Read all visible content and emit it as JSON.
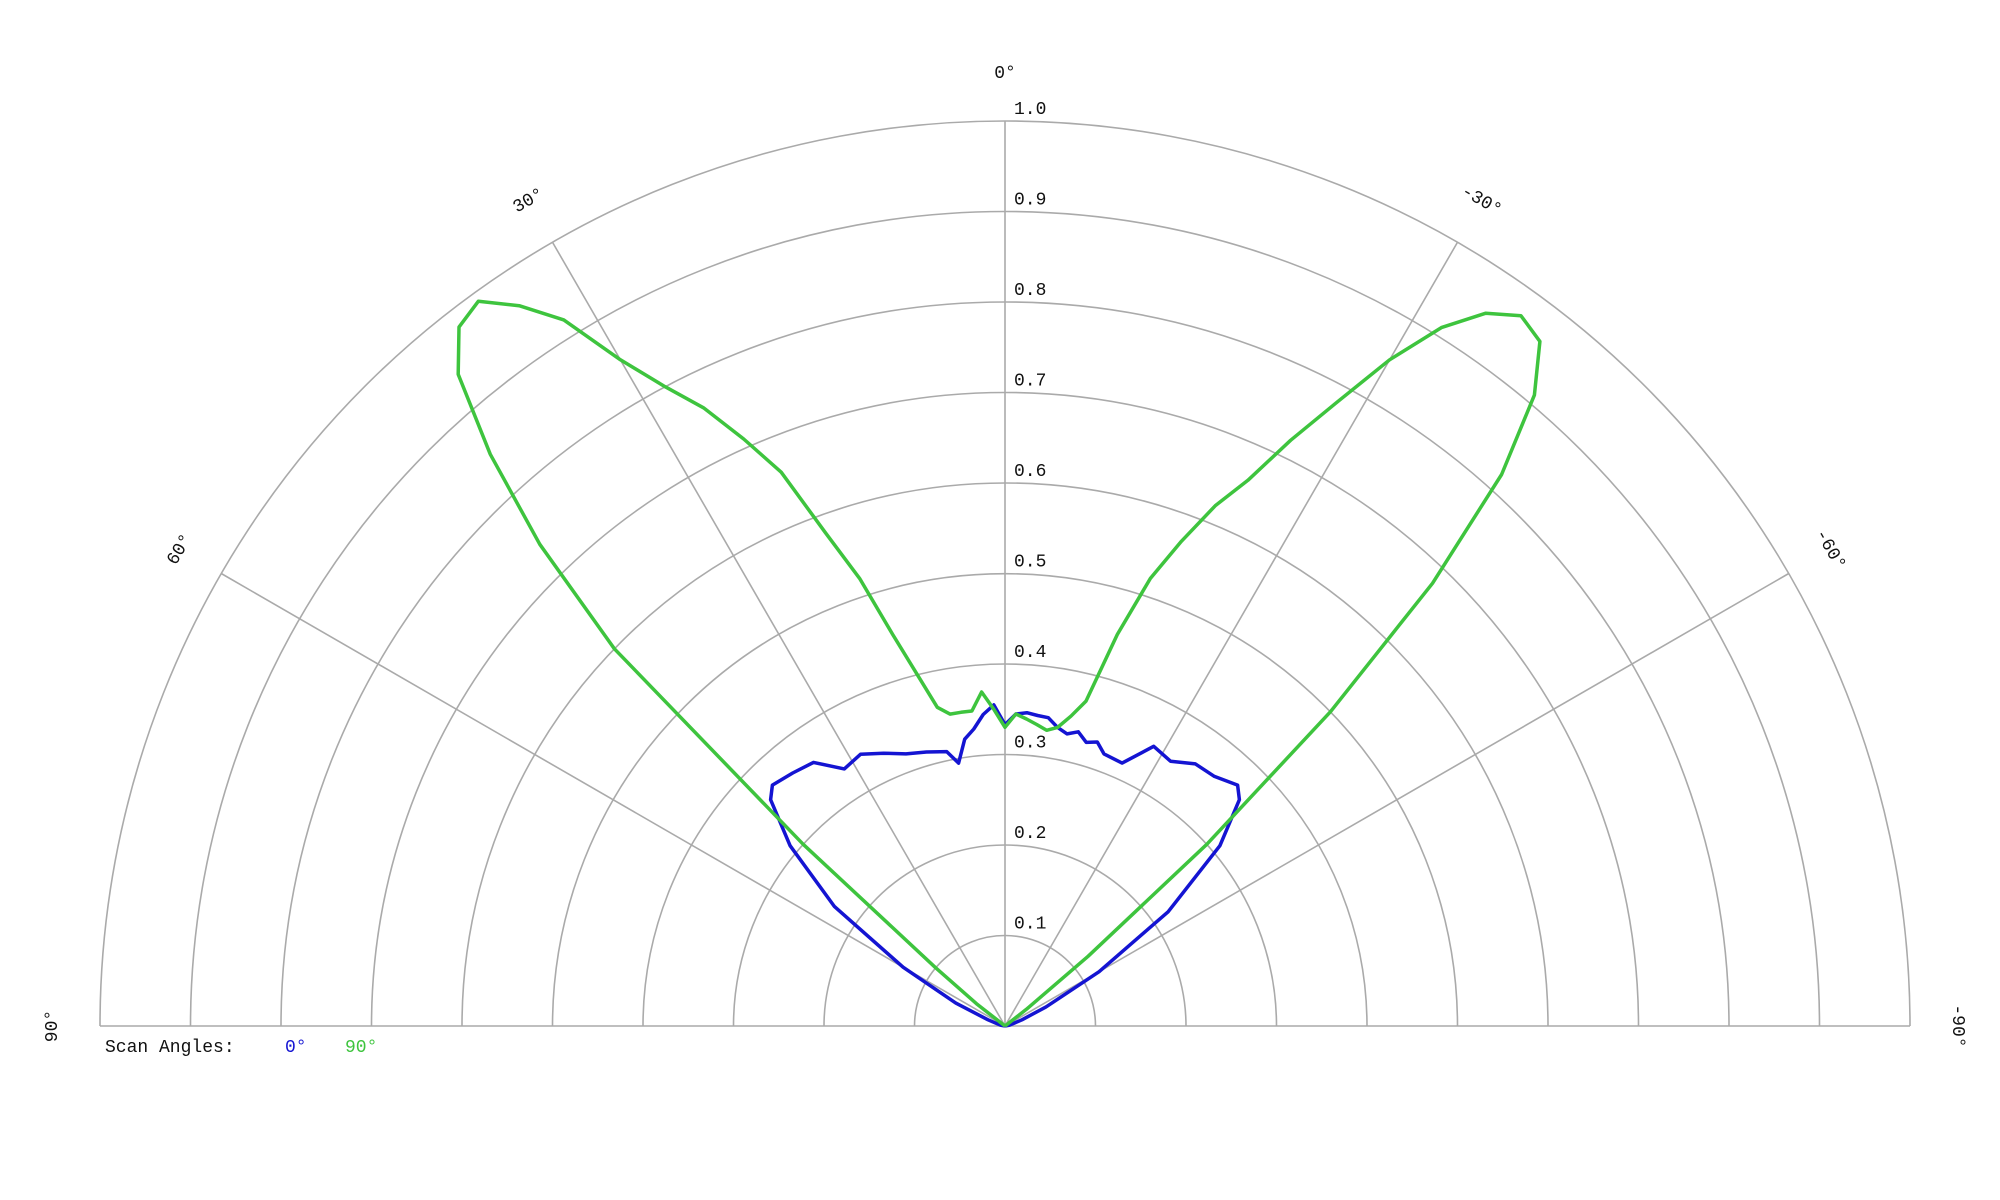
{
  "chart_data": {
    "type": "polar",
    "rlim": [
      0,
      1
    ],
    "rticks": [
      0.1,
      0.2,
      0.3,
      0.4,
      0.5,
      0.6,
      0.7,
      0.8,
      0.9,
      {
        "value": 1,
        "label": "1.0"
      }
    ],
    "thetalim": [
      90,
      -90
    ],
    "thetaticks": [
      {
        "value": 90,
        "label": "90°"
      },
      {
        "value": 60,
        "label": "60°"
      },
      {
        "value": 30,
        "label": "30°"
      },
      {
        "value": 0,
        "label": "0°"
      },
      {
        "value": -30,
        "label": "-30°"
      },
      {
        "value": -60,
        "label": "-60°"
      },
      {
        "value": -90,
        "label": "-90°"
      }
    ],
    "grid": true,
    "legend_title": "Scan Angles:",
    "legend": "bottom-left",
    "series": [
      {
        "name": "0°",
        "color": "#1414d2",
        "x": [
          90,
          80,
          70,
          65,
          60,
          55,
          50,
          46,
          44,
          40,
          36,
          32,
          28,
          24,
          20,
          16,
          12,
          10,
          8,
          6,
          4,
          2,
          0,
          -2,
          -4,
          -6,
          -8,
          -10,
          -12,
          -14,
          -16,
          -18,
          -20,
          -24,
          -28,
          -32,
          -36,
          -40,
          -44,
          -46,
          -50,
          -55,
          -60,
          -65,
          -70,
          -80,
          -90
        ],
        "values": [
          0,
          0.005,
          0.02,
          0.06,
          0.13,
          0.23,
          0.31,
          0.36,
          0.37,
          0.365,
          0.36,
          0.335,
          0.34,
          0.33,
          0.32,
          0.315,
          0.31,
          0.295,
          0.32,
          0.33,
          0.345,
          0.355,
          0.333,
          0.345,
          0.347,
          0.345,
          0.344,
          0.335,
          0.33,
          0.335,
          0.326,
          0.33,
          0.32,
          0.318,
          0.35,
          0.345,
          0.358,
          0.36,
          0.37,
          0.36,
          0.31,
          0.22,
          0.12,
          0.05,
          0.02,
          0.005,
          0
        ]
      },
      {
        "name": "90°",
        "color": "#3ec43e",
        "x": [
          90,
          60,
          52,
          50,
          48,
          46,
          44,
          42,
          40,
          38,
          36,
          34,
          32,
          30,
          28,
          26,
          24,
          22,
          20,
          18,
          16,
          14,
          12,
          10,
          8,
          6,
          4,
          2,
          0,
          -2,
          -4,
          -6,
          -8,
          -10,
          -12,
          -14,
          -16,
          -18,
          -20,
          -22,
          -24,
          -26,
          -28,
          -30,
          -32,
          -34,
          -36,
          -38,
          -40,
          -42,
          -44,
          -46,
          -48,
          -50,
          -52,
          -60,
          -90
        ],
        "values": [
          0,
          0,
          0.04,
          0.1,
          0.3,
          0.6,
          0.74,
          0.85,
          0.94,
          0.98,
          0.99,
          0.96,
          0.92,
          0.85,
          0.8,
          0.76,
          0.71,
          0.66,
          0.58,
          0.52,
          0.45,
          0.4,
          0.36,
          0.35,
          0.35,
          0.35,
          0.37,
          0.35,
          0.33,
          0.345,
          0.34,
          0.335,
          0.33,
          0.335,
          0.35,
          0.37,
          0.45,
          0.52,
          0.57,
          0.62,
          0.66,
          0.72,
          0.78,
          0.85,
          0.91,
          0.95,
          0.97,
          0.96,
          0.91,
          0.82,
          0.68,
          0.5,
          0.3,
          0.12,
          0.03,
          0,
          0
        ]
      }
    ]
  }
}
